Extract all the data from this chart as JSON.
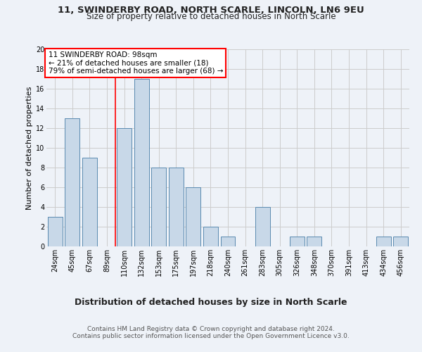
{
  "title1": "11, SWINDERBY ROAD, NORTH SCARLE, LINCOLN, LN6 9EU",
  "title2": "Size of property relative to detached houses in North Scarle",
  "xlabel": "Distribution of detached houses by size in North Scarle",
  "ylabel": "Number of detached properties",
  "categories": [
    "24sqm",
    "45sqm",
    "67sqm",
    "89sqm",
    "110sqm",
    "132sqm",
    "153sqm",
    "175sqm",
    "197sqm",
    "218sqm",
    "240sqm",
    "261sqm",
    "283sqm",
    "305sqm",
    "326sqm",
    "348sqm",
    "370sqm",
    "391sqm",
    "413sqm",
    "434sqm",
    "456sqm"
  ],
  "values": [
    3,
    13,
    9,
    0,
    12,
    17,
    8,
    8,
    6,
    2,
    1,
    0,
    4,
    0,
    1,
    1,
    0,
    0,
    0,
    1,
    1
  ],
  "bar_color": "#c8d8e8",
  "bar_edge_color": "#5a8ab0",
  "annotation_box_text": "11 SWINDERBY ROAD: 98sqm\n← 21% of detached houses are smaller (18)\n79% of semi-detached houses are larger (68) →",
  "annotation_box_color": "white",
  "annotation_box_edge_color": "red",
  "vline_color": "red",
  "vline_x_index": 4,
  "ylim": [
    0,
    20
  ],
  "yticks": [
    0,
    2,
    4,
    6,
    8,
    10,
    12,
    14,
    16,
    18,
    20
  ],
  "grid_color": "#cccccc",
  "background_color": "#eef2f8",
  "footer_text": "Contains HM Land Registry data © Crown copyright and database right 2024.\nContains public sector information licensed under the Open Government Licence v3.0.",
  "title_fontsize": 9.5,
  "subtitle_fontsize": 8.5,
  "xlabel_fontsize": 9,
  "ylabel_fontsize": 8,
  "tick_fontsize": 7,
  "footer_fontsize": 6.5,
  "annotation_fontsize": 7.5
}
